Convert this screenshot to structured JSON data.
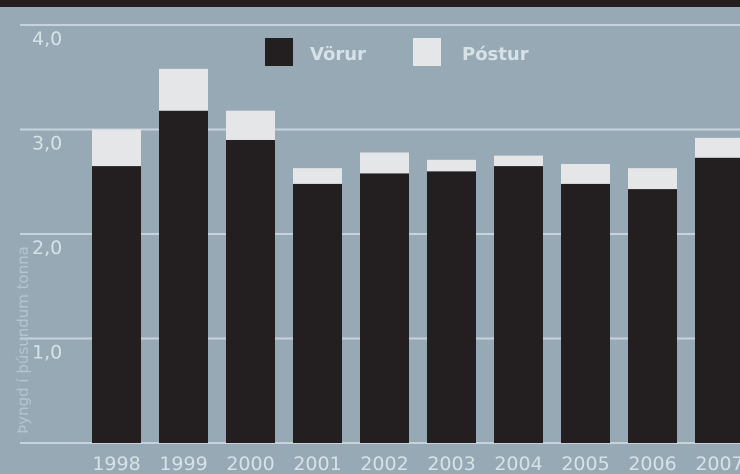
{
  "chart_data": {
    "type": "bar",
    "stacked": true,
    "categories": [
      "1998",
      "1999",
      "2000",
      "2001",
      "2002",
      "2003",
      "2004",
      "2005",
      "2006",
      "2007"
    ],
    "series": [
      {
        "name": "Vörur",
        "color": "#231f20",
        "values": [
          2.65,
          3.18,
          2.9,
          2.48,
          2.58,
          2.6,
          2.65,
          2.48,
          2.43,
          2.73
        ]
      },
      {
        "name": "Póstur",
        "color": "#e5e6e8",
        "values": [
          0.35,
          0.4,
          0.28,
          0.15,
          0.2,
          0.11,
          0.1,
          0.19,
          0.2,
          0.19
        ]
      }
    ],
    "ylabel": "Þyngd í þúsundum tonna",
    "yticks": [
      "1,0",
      "2,0",
      "3,0",
      "4,0"
    ],
    "ylim": [
      0,
      4
    ],
    "grid": true,
    "legend": "top"
  },
  "colors": {
    "background": "#98a9b6",
    "gridline": "#c7d3dc",
    "topbar": "#231f20"
  }
}
